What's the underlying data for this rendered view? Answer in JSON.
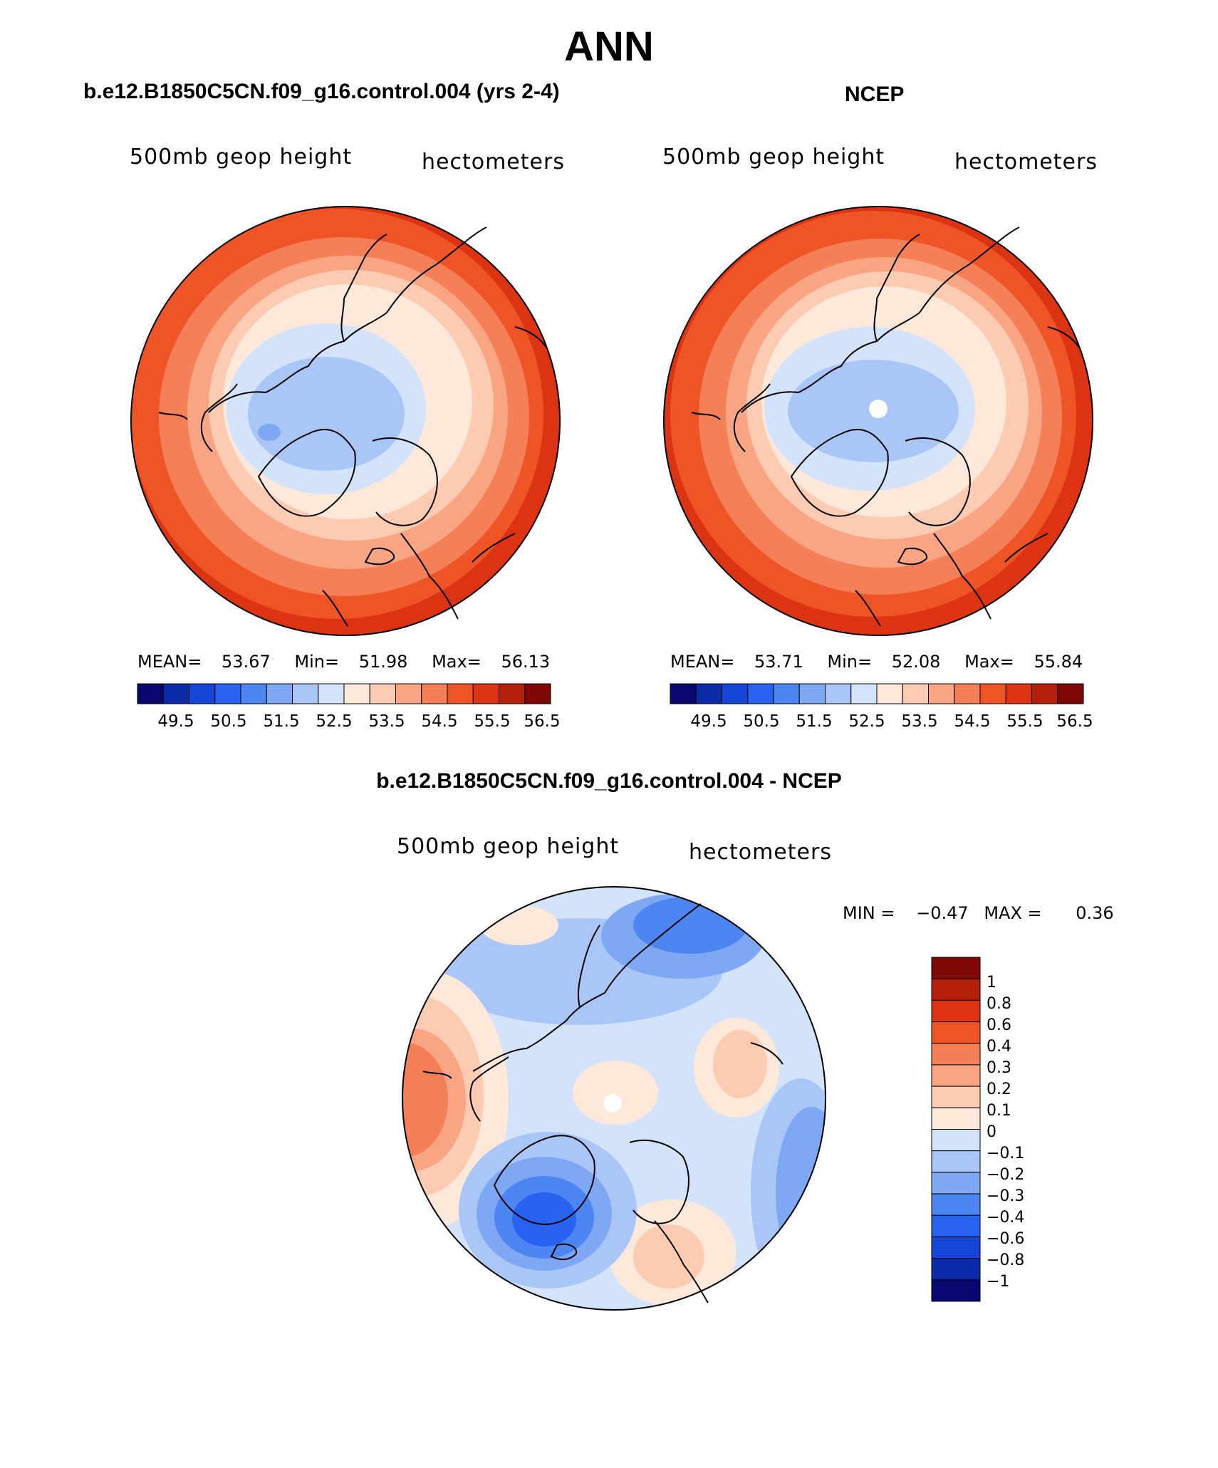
{
  "figure_title": "ANN",
  "colors": {
    "seq": [
      "#08086e",
      "#0b2aa8",
      "#1546d8",
      "#2763f0",
      "#4d86f2",
      "#7ea7f4",
      "#aac6f7",
      "#d3e3fb",
      "#fde8d9",
      "#fccbb2",
      "#f9a583",
      "#f57f56",
      "#ef5426",
      "#dc3412",
      "#b51f0a",
      "#7f0704"
    ],
    "diff": [
      "#08086e",
      "#0b2aa8",
      "#1546d8",
      "#2763f0",
      "#4d86f2",
      "#7ea7f4",
      "#aac6f7",
      "#d3e3fb",
      "#fde8d9",
      "#fccbb2",
      "#f9a583",
      "#f57f56",
      "#ef5426",
      "#dc3412",
      "#b51f0a",
      "#7f0704"
    ],
    "coast": "#000000"
  },
  "panels": [
    {
      "id": "model",
      "title": "b.e12.B1850C5CN.f09_g16.control.004 (yrs 2-4)",
      "variable": "500mb geop height",
      "units": "hectometers",
      "mean_label": "MEAN=",
      "mean": "53.67",
      "min_label": "Min=",
      "min": "51.98",
      "max_label": "Max=",
      "max": "56.13"
    },
    {
      "id": "obs",
      "title": "NCEP",
      "variable": "500mb geop height",
      "units": "hectometers",
      "mean_label": "MEAN=",
      "mean": "53.71",
      "min_label": "Min=",
      "min": "52.08",
      "max_label": "Max=",
      "max": "55.84"
    },
    {
      "id": "diff",
      "title": "b.e12.B1850C5CN.f09_g16.control.004 - NCEP",
      "variable": "500mb geop height",
      "units": "hectometers",
      "min_label": "MIN =",
      "min": "−0.47",
      "max_label": "MAX =",
      "max": "0.36"
    }
  ],
  "colorbar_horizontal_ticks": [
    "49.5",
    "50.5",
    "51.5",
    "52.5",
    "53.5",
    "54.5",
    "55.5",
    "56.5"
  ],
  "colorbar_vertical_ticks": [
    "1",
    "0.8",
    "0.6",
    "0.4",
    "0.3",
    "0.2",
    "0.1",
    "0",
    "−0.1",
    "−0.2",
    "−0.3",
    "−0.4",
    "−0.6",
    "−0.8",
    "−1"
  ]
}
